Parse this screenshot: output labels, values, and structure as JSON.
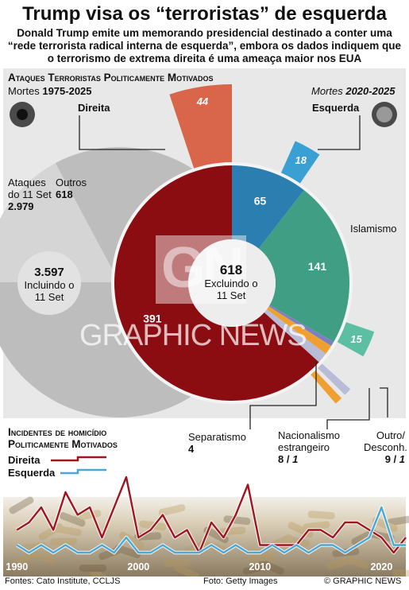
{
  "header": {
    "title": "Trump visa os “terroristas” de esquerda",
    "subtitle": "Donald Trump emite um memorando presidencial destinado a conter uma “rede terrorista radical interna de esquerda”, embora os dados indiquem que o terrorismo de extrema direita é uma ameaça maior nos EUA"
  },
  "attacks": {
    "section_title": "Ataques Terroristas Politicamente Motivados",
    "left_period_prefix": "Mortes ",
    "left_period": "1975-2025",
    "right_period_prefix": "Mortes ",
    "right_period": "2020-2025",
    "direita_label": "Direita",
    "esquerda_label": "Esquerda",
    "outer_label_911": "Ataques do 11 Set",
    "outer_value_911": "2.979",
    "outer_label_outros": "Outros",
    "outer_value_outros": "618",
    "outer_center_value": "3.597",
    "outer_center_label": "Incluindo o 11 Set",
    "inner_center_value": "618",
    "inner_center_label": "Excluindo o 11 Set",
    "islamismo_label": "Islamismo",
    "separatismo_label": "Separatismo",
    "separatismo_value": "4",
    "nacionalismo_label": "Nacionalismo estrangeiro",
    "nacionalismo_value_a": "8",
    "nacionalismo_value_b": "1",
    "outro_label": "Outro/ Desconh.",
    "outro_value_a": "9",
    "outro_value_b": "1",
    "watermark_logo": "GN",
    "watermark": "GRAPHIC NEWS"
  },
  "homicides": {
    "title_line1": "Incidentes de homicídio",
    "title_line2": "Politicamente Motivados",
    "legend_direita": "Direita",
    "legend_esquerda": "Esquerda"
  },
  "footer": {
    "sources": "Fontes: Cato Institute, CCLJS",
    "photo": "Foto: Getty Images",
    "copyright": "© GRAPHIC NEWS"
  },
  "colors": {
    "direita": "#8b0d12",
    "direita_recent": "#d9664a",
    "esquerda": "#2b7fb0",
    "esquerda_recent": "#3a9fd3",
    "islamismo": "#3f9e83",
    "islamismo_recent": "#5cbfa2",
    "separatismo": "#7b80c0",
    "nacionalismo": "#f0a030",
    "outro": "#b8bcd6",
    "line_direita": "#a01520",
    "line_esquerda": "#4aa8d8"
  },
  "chart_data": [
    {
      "type": "pie",
      "title": "Ataques Terroristas Politicamente Motivados",
      "subtitle": "Mortes 1975-2025",
      "labels": [
        "Ataques do 11 Set",
        "Outros"
      ],
      "values": [
        2979,
        618
      ],
      "total": 3597
    },
    {
      "type": "pie",
      "subtitle": "Mortes 1975-2025 (Excluindo o 11 Set)",
      "labels": [
        "Direita",
        "Esquerda",
        "Islamismo",
        "Separatismo",
        "Nacionalismo estrangeiro",
        "Outro/ Desconh."
      ],
      "values": [
        391,
        65,
        141,
        4,
        8,
        9
      ],
      "total": 618
    },
    {
      "type": "bar",
      "subtitle": "Mortes 2020-2025",
      "categories": [
        "Direita",
        "Esquerda",
        "Islamismo",
        "Nacionalismo estrangeiro",
        "Outro/ Desconh."
      ],
      "values": [
        44,
        18,
        15,
        1,
        1
      ]
    },
    {
      "type": "line",
      "title": "Incidentes de homicídio Politicamente Motivados",
      "x": [
        1990,
        1991,
        1992,
        1993,
        1994,
        1995,
        1996,
        1997,
        1998,
        1999,
        2000,
        2001,
        2002,
        2003,
        2004,
        2005,
        2006,
        2007,
        2008,
        2009,
        2010,
        2011,
        2012,
        2013,
        2014,
        2015,
        2016,
        2017,
        2018,
        2019,
        2020,
        2021,
        2022
      ],
      "xlim": [
        1989,
        2022
      ],
      "ylim": [
        0,
        14
      ],
      "xticks": [
        "1990",
        "2000",
        "2010",
        "2020"
      ],
      "series": [
        {
          "name": "Direita",
          "values": [
            3,
            4,
            6,
            3,
            8,
            5,
            6,
            2,
            6,
            10,
            2,
            3,
            5,
            2,
            3,
            0,
            4,
            2,
            5,
            9,
            1,
            1,
            1,
            1,
            3,
            3,
            2,
            4,
            4,
            3,
            2,
            0,
            2
          ]
        },
        {
          "name": "Esquerda",
          "values": [
            1,
            0,
            1,
            0,
            1,
            0,
            0,
            1,
            0,
            2,
            0,
            0,
            1,
            0,
            0,
            0,
            1,
            0,
            1,
            0,
            0,
            1,
            0,
            1,
            0,
            1,
            1,
            0,
            1,
            2,
            6,
            1,
            1
          ]
        }
      ]
    }
  ]
}
